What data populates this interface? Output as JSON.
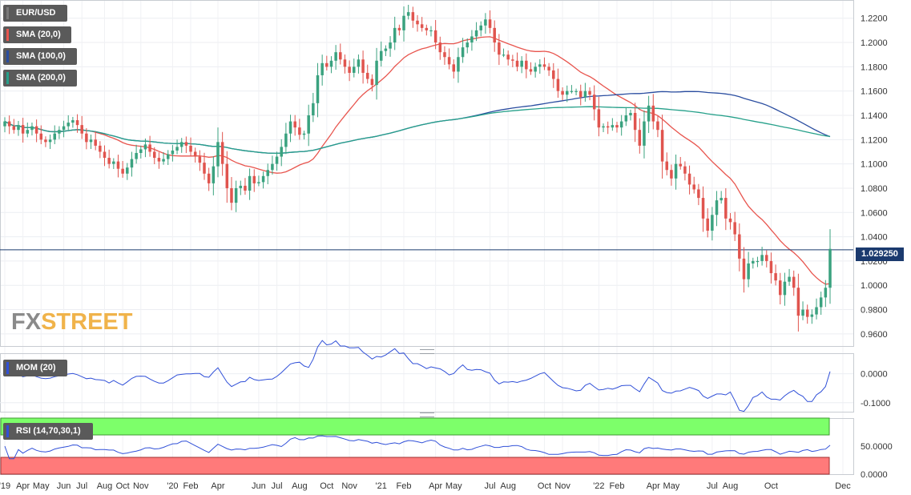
{
  "chart_data": [
    {
      "type": "candlestick",
      "instrument": "EUR/USD",
      "indicators": [
        "SMA (20,0)",
        "SMA (100,0)",
        "SMA (200,0)"
      ],
      "ylim": [
        0.95,
        1.235
      ],
      "y_ticks": [
        "1.2200",
        "1.2000",
        "1.1800",
        "1.1600",
        "1.1400",
        "1.1200",
        "1.1000",
        "1.0800",
        "1.0600",
        "1.0400",
        "1.0200",
        "1.0000",
        "0.9800",
        "0.9600"
      ],
      "last_price": "1.029250",
      "x_tick_labels": [
        "'19",
        "Apr",
        "May",
        "Jun",
        "Jul",
        "Aug",
        "Oct",
        "Nov",
        "'20",
        "Feb",
        "Apr",
        "Jun",
        "Jul",
        "Aug",
        "Oct",
        "Nov",
        "'21",
        "Feb",
        "Apr",
        "May",
        "Jul",
        "Aug",
        "Oct",
        "Nov",
        "'22",
        "Feb",
        "Apr",
        "May",
        "Jul",
        "Aug",
        "Oct",
        "Dec"
      ],
      "closes": [
        1.135,
        1.131,
        1.128,
        1.132,
        1.125,
        1.128,
        1.131,
        1.125,
        1.12,
        1.118,
        1.12,
        1.125,
        1.128,
        1.131,
        1.134,
        1.136,
        1.132,
        1.125,
        1.118,
        1.12,
        1.115,
        1.11,
        1.105,
        1.1,
        1.102,
        1.096,
        1.092,
        1.097,
        1.104,
        1.109,
        1.112,
        1.116,
        1.11,
        1.105,
        1.102,
        1.104,
        1.108,
        1.111,
        1.114,
        1.118,
        1.115,
        1.11,
        1.106,
        1.101,
        1.092,
        1.084,
        1.098,
        1.118,
        1.1,
        1.08,
        1.068,
        1.08,
        1.082,
        1.078,
        1.09,
        1.084,
        1.085,
        1.09,
        1.095,
        1.1,
        1.106,
        1.114,
        1.125,
        1.135,
        1.13,
        1.124,
        1.125,
        1.14,
        1.15,
        1.173,
        1.183,
        1.18,
        1.185,
        1.192,
        1.186,
        1.18,
        1.175,
        1.18,
        1.186,
        1.175,
        1.17,
        1.165,
        1.185,
        1.193,
        1.195,
        1.2,
        1.212,
        1.21,
        1.222,
        1.225,
        1.218,
        1.215,
        1.212,
        1.21,
        1.21,
        1.2,
        1.192,
        1.188,
        1.182,
        1.176,
        1.188,
        1.196,
        1.2,
        1.205,
        1.21,
        1.214,
        1.219,
        1.212,
        1.2,
        1.19,
        1.19,
        1.186,
        1.185,
        1.18,
        1.185,
        1.178,
        1.176,
        1.18,
        1.182,
        1.18,
        1.177,
        1.17,
        1.16,
        1.157,
        1.16,
        1.16,
        1.16,
        1.155,
        1.16,
        1.157,
        1.145,
        1.13,
        1.131,
        1.13,
        1.132,
        1.13,
        1.135,
        1.14,
        1.142,
        1.128,
        1.115,
        1.135,
        1.148,
        1.135,
        1.128,
        1.102,
        1.095,
        1.088,
        1.1,
        1.098,
        1.092,
        1.083,
        1.079,
        1.072,
        1.055,
        1.045,
        1.058,
        1.07,
        1.072,
        1.055,
        1.052,
        1.042,
        1.022,
        1.005,
        1.018,
        1.02,
        1.02,
        1.025,
        1.02,
        1.01,
        1.004,
        0.992,
        1.003,
        1.007,
        0.998,
        0.975,
        0.98,
        0.974,
        0.976,
        0.982,
        0.99,
        0.998,
        1.03
      ]
    },
    {
      "type": "line",
      "name": "MOM (20)",
      "y_ticks": [
        "0.0000",
        "-0.1000"
      ]
    },
    {
      "type": "line",
      "name": "RSI (14,70,30,1)",
      "y_ticks": [
        "50.0000",
        "0.0000"
      ],
      "overbought": 70,
      "oversold": 30
    }
  ],
  "colors": {
    "up": "#3aa27f",
    "down": "#e0544e",
    "sma20": "#e8554e",
    "sma100": "#2a4da0",
    "sma200": "#26a08a",
    "momentum": "#3050d8",
    "rsi": "#3050d8",
    "rsi_overbought_zone": "#7dff6a",
    "rsi_oversold_zone": "#ff7a7a",
    "last_price_line": "#1b3a6e"
  },
  "labels": {
    "instrument": "EUR/USD",
    "sma20": "SMA (20,0)",
    "sma100": "SMA (100,0)",
    "sma200": "SMA (200,0)",
    "mom": "MOM (20)",
    "rsi": "RSI (14,70,30,1)",
    "price": "1.029250",
    "logo_fx": "FX",
    "logo_street": "STREET"
  }
}
